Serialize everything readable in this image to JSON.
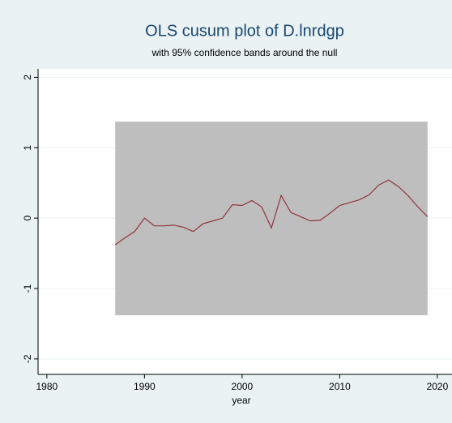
{
  "chart_data": {
    "type": "line",
    "title": "OLS cusum plot of D.lnrdgp",
    "subtitle": "with 95% confidence bands around the null",
    "x_label": "year",
    "x": [
      1987,
      1988,
      1989,
      1990,
      1991,
      1992,
      1993,
      1994,
      1995,
      1996,
      1997,
      1998,
      1999,
      2000,
      2001,
      2002,
      2003,
      2004,
      2005,
      2006,
      2007,
      2008,
      2009,
      2010,
      2011,
      2012,
      2013,
      2014,
      2015,
      2016,
      2017,
      2018,
      2019
    ],
    "series": [
      {
        "color": "#90353b",
        "values": [
          -0.38,
          -0.28,
          -0.19,
          0.0,
          -0.11,
          -0.11,
          -0.1,
          -0.13,
          -0.19,
          -0.08,
          -0.04,
          0.0,
          0.19,
          0.18,
          0.25,
          0.16,
          -0.14,
          0.32,
          0.08,
          0.02,
          -0.04,
          -0.03,
          0.07,
          0.18,
          0.22,
          0.26,
          0.33,
          0.47,
          0.54,
          0.45,
          0.32,
          0.16,
          0.02
        ]
      }
    ],
    "band": {
      "x": [
        1987,
        2019
      ],
      "lower": -1.38,
      "upper": 1.37,
      "color": "#bebebe"
    },
    "xlim": [
      1979.1,
      2021.5
    ],
    "xticks": [
      1980,
      1990,
      2000,
      2010,
      2020
    ],
    "ylim": [
      -2.22,
      2.12
    ],
    "yticks": [
      -2,
      -1,
      0,
      1,
      2
    ],
    "grid": true
  }
}
